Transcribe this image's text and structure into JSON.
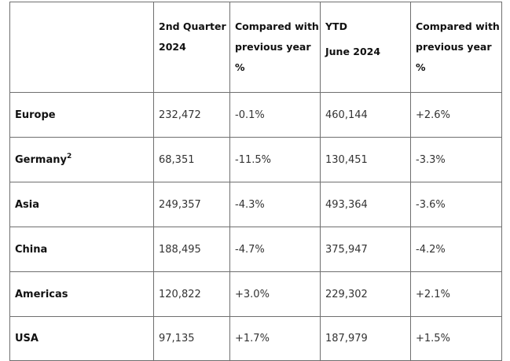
{
  "table": {
    "headers": {
      "region": "",
      "q2": "2nd Quarter 2024",
      "q2_change": "Compared with previous year %",
      "ytd_line1": "YTD",
      "ytd_line2": "June 2024",
      "ytd_change": "Compared with previous year %"
    },
    "rows": [
      {
        "region": "Europe",
        "footnote": "",
        "q2": "232,472",
        "q2_change": "-0.1%",
        "ytd": "460,144",
        "ytd_change": "+2.6%"
      },
      {
        "region": "Germany",
        "footnote": "2",
        "q2": "68,351",
        "q2_change": "-11.5%",
        "ytd": "130,451",
        "ytd_change": "-3.3%"
      },
      {
        "region": "Asia",
        "footnote": "",
        "q2": "249,357",
        "q2_change": "-4.3%",
        "ytd": "493,364",
        "ytd_change": "-3.6%"
      },
      {
        "region": "China",
        "footnote": "",
        "q2": "188,495",
        "q2_change": "-4.7%",
        "ytd": "375,947",
        "ytd_change": "-4.2%"
      },
      {
        "region": "Americas",
        "footnote": "",
        "q2": "120,822",
        "q2_change": "+3.0%",
        "ytd": "229,302",
        "ytd_change": "+2.1%"
      },
      {
        "region": "USA",
        "footnote": "",
        "q2": "97,135",
        "q2_change": "+1.7%",
        "ytd": "187,979",
        "ytd_change": "+1.5%"
      }
    ]
  }
}
